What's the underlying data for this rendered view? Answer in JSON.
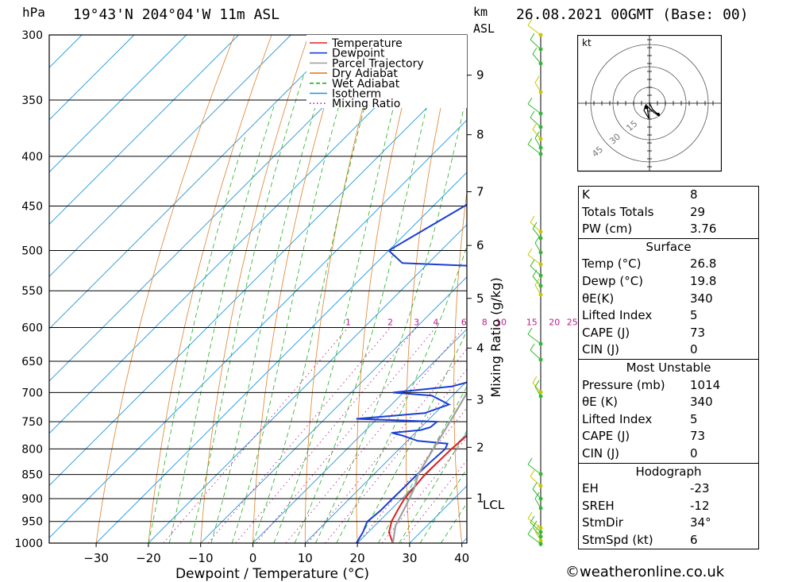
{
  "header": {
    "pressure_unit": "hPa",
    "location": "19°43'N  204°04'W  11m  ASL",
    "height_unit_top": "km",
    "height_unit_bottom": "ASL",
    "datetime": "26.08.2021  00GMT  (Base: 00)"
  },
  "chart_data": {
    "type": "line",
    "subtype": "skew-T log-P sounding",
    "xlabel": "Dewpoint / Temperature (°C)",
    "ylabel": "hPa",
    "xlim": [
      -40,
      40
    ],
    "ylim": [
      1000,
      300
    ],
    "x_ticks": [
      "-30",
      "-20",
      "-10",
      "0",
      "10",
      "20",
      "30",
      "40"
    ],
    "y_ticks": [
      "300",
      "350",
      "400",
      "450",
      "500",
      "550",
      "600",
      "650",
      "700",
      "750",
      "800",
      "850",
      "900",
      "950",
      "1000"
    ],
    "km_ticks": [
      {
        "label": "9",
        "p": 330
      },
      {
        "label": "8",
        "p": 380
      },
      {
        "label": "7",
        "p": 435
      },
      {
        "label": "6",
        "p": 494
      },
      {
        "label": "5",
        "p": 560
      },
      {
        "label": "4",
        "p": 630
      },
      {
        "label": "3",
        "p": 712
      },
      {
        "label": "2",
        "p": 797
      },
      {
        "label": "1",
        "p": 899
      }
    ],
    "lcl_label": "LCL",
    "mixing_ratio_label": "Mixing Ratio  (g/kg)",
    "mixing_ratio_values": [
      "1",
      "2",
      "3",
      "4",
      "6",
      "8",
      "10",
      "15",
      "20",
      "25"
    ],
    "legend": [
      "Temperature",
      "Dewpoint",
      "Parcel Trajectory",
      "Dry Adiabat",
      "Wet Adiabat",
      "Isotherm",
      "Mixing Ratio"
    ],
    "legend_position": "top-center",
    "colors": {
      "temperature": "#e02020",
      "dewpoint": "#1a3fd6",
      "parcel": "#a0a0a0",
      "dry_adiabat": "#e0802a",
      "wet_adiabat": "#22b022",
      "isotherm": "#1e96e0",
      "mixing_ratio": "#c01a8c"
    },
    "series": [
      {
        "name": "Temperature",
        "points": [
          [
            26.8,
            1000
          ],
          [
            24,
            975
          ],
          [
            22.4,
            950
          ],
          [
            21.4,
            925
          ],
          [
            20.5,
            900
          ],
          [
            20.2,
            875
          ],
          [
            19.8,
            850
          ],
          [
            20,
            800
          ],
          [
            20.4,
            775
          ],
          [
            22,
            750
          ],
          [
            21.5,
            725
          ],
          [
            20.8,
            700
          ],
          [
            20.5,
            675
          ],
          [
            19.5,
            650
          ],
          [
            18.5,
            625
          ],
          [
            18,
            600
          ],
          [
            17.5,
            575
          ],
          [
            16.5,
            550
          ],
          [
            15.5,
            525
          ],
          [
            15,
            500
          ],
          [
            13.5,
            475
          ],
          [
            10.5,
            450
          ],
          [
            7.2,
            425
          ],
          [
            4,
            400
          ],
          [
            1.2,
            375
          ],
          [
            -1.6,
            350
          ],
          [
            -5.5,
            325
          ],
          [
            -8,
            300
          ]
        ]
      },
      {
        "name": "Dewpoint",
        "points": [
          [
            19.8,
            1000
          ],
          [
            19,
            975
          ],
          [
            18,
            955
          ],
          [
            17.8,
            950
          ],
          [
            18.2,
            925
          ],
          [
            18.2,
            900
          ],
          [
            18.3,
            875
          ],
          [
            18.3,
            850
          ],
          [
            18.5,
            825
          ],
          [
            18.8,
            800
          ],
          [
            18.2,
            790
          ],
          [
            12,
            785
          ],
          [
            8,
            775
          ],
          [
            5.5,
            770
          ],
          [
            10.5,
            765
          ],
          [
            11.8,
            760
          ],
          [
            12,
            750
          ],
          [
            -4,
            745
          ],
          [
            8,
            735
          ],
          [
            11,
            720
          ],
          [
            6,
            705
          ],
          [
            -2,
            700
          ],
          [
            8,
            690
          ],
          [
            13,
            675
          ],
          [
            15,
            660
          ],
          [
            14,
            650
          ],
          [
            16,
            640
          ],
          [
            17,
            620
          ],
          [
            14.5,
            603
          ],
          [
            2,
            595
          ],
          [
            3.5,
            588
          ],
          [
            -1,
            580
          ],
          [
            -2.5,
            572
          ],
          [
            2,
            565
          ],
          [
            -3,
            558
          ],
          [
            0,
            551
          ],
          [
            -2.5,
            540
          ],
          [
            -4,
            530
          ],
          [
            -5,
            520
          ],
          [
            -25,
            515
          ],
          [
            -30,
            500
          ],
          [
            -24,
            450
          ],
          [
            -18,
            400
          ],
          [
            -17,
            375
          ],
          [
            -17.5,
            350
          ],
          [
            -22,
            325
          ],
          [
            -24,
            300
          ]
        ]
      },
      {
        "name": "Parcel Trajectory",
        "points": [
          [
            26.8,
            1000
          ],
          [
            24,
            960
          ],
          [
            22,
            912
          ],
          [
            20.5,
            880
          ],
          [
            18.5,
            850
          ],
          [
            16.5,
            800
          ],
          [
            14.5,
            750
          ],
          [
            12.2,
            700
          ],
          [
            9.5,
            650
          ],
          [
            7,
            600
          ],
          [
            4,
            550
          ],
          [
            0.5,
            500
          ],
          [
            -3.5,
            450
          ],
          [
            -8.5,
            400
          ],
          [
            -14.5,
            350
          ],
          [
            -20,
            318
          ],
          [
            -23,
            300
          ]
        ]
      }
    ]
  },
  "hodograph": {
    "unit_label": "kt",
    "ring_labels": [
      "15",
      "30",
      "45"
    ]
  },
  "indices": {
    "rows": [
      {
        "label": "K",
        "value": "8"
      },
      {
        "label": "Totals Totals",
        "value": "29"
      },
      {
        "label": "PW (cm)",
        "value": "3.76"
      }
    ],
    "surface": {
      "title": "Surface",
      "rows": [
        {
          "label": "Temp (°C)",
          "value": "26.8"
        },
        {
          "label": "Dewp (°C)",
          "value": "19.8"
        },
        {
          "label": "θE(K)",
          "value": "340"
        },
        {
          "label": "Lifted Index",
          "value": "5"
        },
        {
          "label": "CAPE (J)",
          "value": "73"
        },
        {
          "label": "CIN (J)",
          "value": "0"
        }
      ]
    },
    "most_unstable": {
      "title": "Most Unstable",
      "rows": [
        {
          "label": "Pressure (mb)",
          "value": "1014"
        },
        {
          "label": "θE (K)",
          "value": "340"
        },
        {
          "label": "Lifted Index",
          "value": "5"
        },
        {
          "label": "CAPE (J)",
          "value": "73"
        },
        {
          "label": "CIN (J)",
          "value": "0"
        }
      ]
    },
    "hodograph_block": {
      "title": "Hodograph",
      "rows": [
        {
          "label": "EH",
          "value": "-23"
        },
        {
          "label": "SREH",
          "value": "-12"
        },
        {
          "label": "StmDir",
          "value": "34°"
        },
        {
          "label": "StmSpd (kt)",
          "value": "6"
        }
      ]
    }
  },
  "credit": "©weatheronline.co.uk"
}
